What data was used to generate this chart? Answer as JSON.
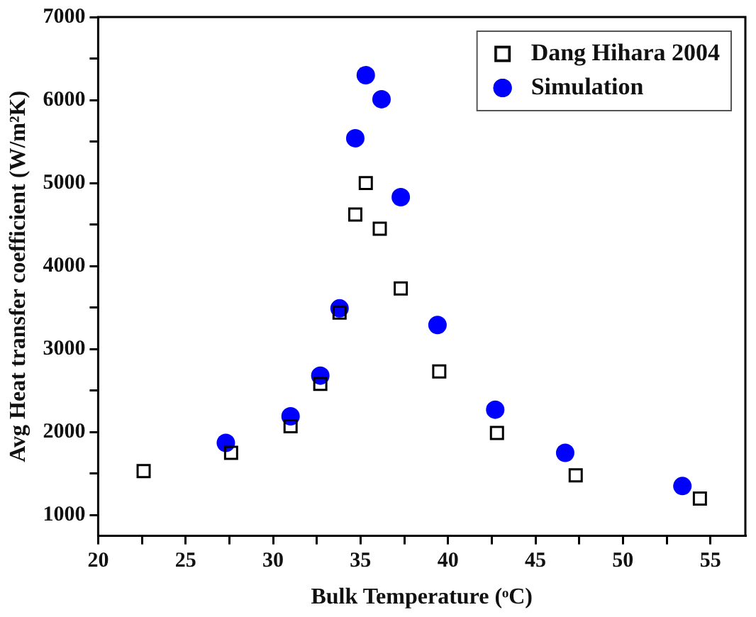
{
  "chart_data": {
    "type": "scatter",
    "xlabel": "Bulk Temperature (ᵒC)",
    "ylabel": "Avg Heat transfer coefficient (W/m²K)",
    "xlim": [
      20,
      57
    ],
    "xticks": [
      20,
      {
        "value": 22.5,
        "label": null
      },
      25,
      {
        "value": 27.5,
        "label": null
      },
      30,
      {
        "value": 32.5,
        "label": null
      },
      35,
      {
        "value": 37.5,
        "label": null
      },
      40,
      {
        "value": 42.5,
        "label": null
      },
      45,
      {
        "value": 47.5,
        "label": null
      },
      50,
      {
        "value": 52.5,
        "label": null
      },
      55
    ],
    "ylim": [
      750,
      7000
    ],
    "yticks": [
      1000,
      {
        "value": 1500,
        "label": null
      },
      2000,
      {
        "value": 2500,
        "label": null
      },
      3000,
      {
        "value": 3500,
        "label": null
      },
      4000,
      {
        "value": 4500,
        "label": null
      },
      5000,
      {
        "value": 5500,
        "label": null
      },
      6000,
      {
        "value": 6500,
        "label": null
      },
      7000
    ],
    "grid": false,
    "legend": "top right",
    "series": [
      {
        "name": "Dang Hihara 2004",
        "color": "#000000",
        "marker": "square",
        "x": [
          22.6,
          27.6,
          31.0,
          32.7,
          33.8,
          34.7,
          35.3,
          36.1,
          37.3,
          39.5,
          42.8,
          47.3,
          54.4
        ],
        "values": [
          1530,
          1750,
          2070,
          2580,
          3440,
          4620,
          5000,
          4450,
          3730,
          2730,
          1990,
          1480,
          1200
        ]
      },
      {
        "name": "Simulation",
        "color": "#0000ff",
        "marker": "circle",
        "x": [
          27.3,
          31.0,
          32.7,
          33.8,
          34.7,
          35.3,
          36.2,
          37.3,
          39.4,
          42.7,
          46.7,
          53.4
        ],
        "values": [
          1870,
          2190,
          2680,
          3490,
          5540,
          6300,
          6010,
          4830,
          3290,
          2270,
          1750,
          1350
        ]
      }
    ]
  }
}
